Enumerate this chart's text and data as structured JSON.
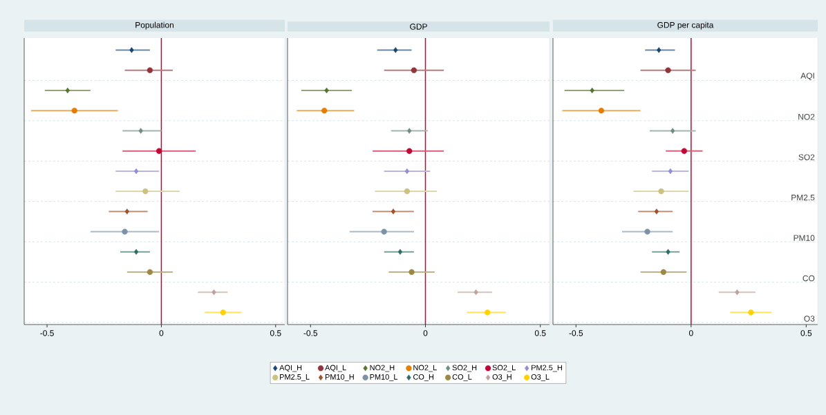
{
  "chart_data": [
    {
      "type": "scatter",
      "orientation": "horizontal",
      "title": "Population",
      "xlim": [
        -0.6,
        0.54
      ],
      "xticks": [
        -0.5,
        0,
        0.5
      ],
      "categories": [
        null,
        null,
        null,
        null,
        null,
        null,
        null,
        null,
        null,
        null,
        null,
        null,
        null,
        null
      ],
      "grid": "y",
      "tick_labels": "x",
      "legend": "bottom",
      "ref_lines": [
        {
          "axis": "x",
          "value": 0,
          "color": "#c10534"
        }
      ],
      "series": [
        {
          "name": "AQI_H",
          "color": "#1a476f",
          "marker": "diamond",
          "values": [
            -0.13,
            null,
            null,
            null,
            null,
            null,
            null,
            null,
            null,
            null,
            null,
            null,
            null,
            null
          ],
          "errors": [
            [
              -0.2,
              -0.05
            ],
            null,
            null,
            null,
            null,
            null,
            null,
            null,
            null,
            null,
            null,
            null,
            null,
            null
          ]
        },
        {
          "name": "AQI_L",
          "color": "#90353b",
          "marker": "circle",
          "values": [
            null,
            -0.05,
            null,
            null,
            null,
            null,
            null,
            null,
            null,
            null,
            null,
            null,
            null,
            null
          ],
          "errors": [
            null,
            [
              -0.16,
              0.05
            ],
            null,
            null,
            null,
            null,
            null,
            null,
            null,
            null,
            null,
            null,
            null,
            null
          ]
        },
        {
          "name": "NO2_H",
          "color": "#55752f",
          "marker": "diamond",
          "values": [
            null,
            null,
            -0.41,
            null,
            null,
            null,
            null,
            null,
            null,
            null,
            null,
            null,
            null,
            null
          ],
          "errors": [
            null,
            null,
            [
              -0.51,
              -0.31
            ],
            null,
            null,
            null,
            null,
            null,
            null,
            null,
            null,
            null,
            null,
            null
          ]
        },
        {
          "name": "NO2_L",
          "color": "#e37e00",
          "marker": "circle",
          "values": [
            null,
            null,
            null,
            -0.38,
            null,
            null,
            null,
            null,
            null,
            null,
            null,
            null,
            null,
            null
          ],
          "errors": [
            null,
            null,
            null,
            [
              -0.57,
              -0.19
            ],
            null,
            null,
            null,
            null,
            null,
            null,
            null,
            null,
            null,
            null
          ]
        },
        {
          "name": "SO2_H",
          "color": "#6e8e84",
          "marker": "diamond",
          "values": [
            null,
            null,
            null,
            null,
            -0.09,
            null,
            null,
            null,
            null,
            null,
            null,
            null,
            null,
            null
          ],
          "errors": [
            null,
            null,
            null,
            null,
            [
              -0.17,
              0
            ],
            null,
            null,
            null,
            null,
            null,
            null,
            null,
            null,
            null
          ]
        },
        {
          "name": "SO2_L",
          "color": "#c10534",
          "marker": "circle",
          "values": [
            null,
            null,
            null,
            null,
            null,
            -0.01,
            null,
            null,
            null,
            null,
            null,
            null,
            null,
            null
          ],
          "errors": [
            null,
            null,
            null,
            null,
            null,
            [
              -0.17,
              0.15
            ],
            null,
            null,
            null,
            null,
            null,
            null,
            null,
            null
          ]
        },
        {
          "name": "PM2.5_H",
          "color": "#938dd2",
          "marker": "diamond",
          "values": [
            null,
            null,
            null,
            null,
            null,
            null,
            -0.11,
            null,
            null,
            null,
            null,
            null,
            null,
            null
          ],
          "errors": [
            null,
            null,
            null,
            null,
            null,
            null,
            [
              -0.2,
              -0.01
            ],
            null,
            null,
            null,
            null,
            null,
            null,
            null
          ]
        },
        {
          "name": "PM2.5_L",
          "color": "#cac27e",
          "marker": "circle",
          "values": [
            null,
            null,
            null,
            null,
            null,
            null,
            null,
            -0.07,
            null,
            null,
            null,
            null,
            null,
            null
          ],
          "errors": [
            null,
            null,
            null,
            null,
            null,
            null,
            null,
            [
              -0.2,
              0.08
            ],
            null,
            null,
            null,
            null,
            null,
            null
          ]
        },
        {
          "name": "PM10_H",
          "color": "#a0522d",
          "marker": "diamond",
          "values": [
            null,
            null,
            null,
            null,
            null,
            null,
            null,
            null,
            -0.15,
            null,
            null,
            null,
            null,
            null
          ],
          "errors": [
            null,
            null,
            null,
            null,
            null,
            null,
            null,
            null,
            [
              -0.23,
              -0.06
            ],
            null,
            null,
            null,
            null,
            null
          ]
        },
        {
          "name": "PM10_L",
          "color": "#7b92a8",
          "marker": "circle",
          "values": [
            null,
            null,
            null,
            null,
            null,
            null,
            null,
            null,
            null,
            -0.16,
            null,
            null,
            null,
            null
          ],
          "errors": [
            null,
            null,
            null,
            null,
            null,
            null,
            null,
            null,
            null,
            [
              -0.31,
              -0.01
            ],
            null,
            null,
            null,
            null
          ]
        },
        {
          "name": "CO_H",
          "color": "#2d6d66",
          "marker": "diamond",
          "values": [
            null,
            null,
            null,
            null,
            null,
            null,
            null,
            null,
            null,
            null,
            -0.11,
            null,
            null,
            null
          ],
          "errors": [
            null,
            null,
            null,
            null,
            null,
            null,
            null,
            null,
            null,
            null,
            [
              -0.18,
              -0.05
            ],
            null,
            null,
            null
          ]
        },
        {
          "name": "CO_L",
          "color": "#9c8847",
          "marker": "circle",
          "values": [
            null,
            null,
            null,
            null,
            null,
            null,
            null,
            null,
            null,
            null,
            null,
            -0.05,
            null,
            null
          ],
          "errors": [
            null,
            null,
            null,
            null,
            null,
            null,
            null,
            null,
            null,
            null,
            null,
            [
              -0.15,
              0.05
            ],
            null,
            null
          ]
        },
        {
          "name": "O3_H",
          "color": "#bfa19c",
          "marker": "diamond",
          "values": [
            null,
            null,
            null,
            null,
            null,
            null,
            null,
            null,
            null,
            null,
            null,
            null,
            0.23,
            null
          ],
          "errors": [
            null,
            null,
            null,
            null,
            null,
            null,
            null,
            null,
            null,
            null,
            null,
            null,
            [
              0.16,
              0.29
            ],
            null
          ]
        },
        {
          "name": "O3_L",
          "color": "#ffd200",
          "marker": "circle",
          "values": [
            null,
            null,
            null,
            null,
            null,
            null,
            null,
            null,
            null,
            null,
            null,
            null,
            null,
            0.27
          ],
          "errors": [
            null,
            null,
            null,
            null,
            null,
            null,
            null,
            null,
            null,
            null,
            null,
            null,
            null,
            [
              0.19,
              0.35
            ]
          ]
        }
      ]
    },
    {
      "type": "scatter",
      "orientation": "horizontal",
      "title": "GDP",
      "xlim": [
        -0.6,
        0.54
      ],
      "xticks": [
        -0.5,
        0,
        0.5
      ],
      "categories": [
        null,
        null,
        null,
        null,
        null,
        null,
        null,
        null,
        null,
        null,
        null,
        null,
        null,
        null
      ],
      "grid": "y",
      "tick_labels": "x",
      "ref_lines": [
        {
          "axis": "x",
          "value": 0,
          "color": "#c10534"
        }
      ],
      "series": [
        {
          "color": "#1a476f",
          "marker": "diamond",
          "values": [
            -0.13,
            null,
            null,
            null,
            null,
            null,
            null,
            null,
            null,
            null,
            null,
            null,
            null,
            null
          ],
          "errors": [
            [
              -0.21,
              -0.06
            ],
            null,
            null,
            null,
            null,
            null,
            null,
            null,
            null,
            null,
            null,
            null,
            null,
            null
          ]
        },
        {
          "color": "#90353b",
          "marker": "circle",
          "values": [
            null,
            -0.05,
            null,
            null,
            null,
            null,
            null,
            null,
            null,
            null,
            null,
            null,
            null,
            null
          ],
          "errors": [
            null,
            [
              -0.18,
              0.08
            ],
            null,
            null,
            null,
            null,
            null,
            null,
            null,
            null,
            null,
            null,
            null,
            null
          ]
        },
        {
          "color": "#55752f",
          "marker": "diamond",
          "values": [
            null,
            null,
            -0.43,
            null,
            null,
            null,
            null,
            null,
            null,
            null,
            null,
            null,
            null,
            null
          ],
          "errors": [
            null,
            null,
            [
              -0.54,
              -0.32
            ],
            null,
            null,
            null,
            null,
            null,
            null,
            null,
            null,
            null,
            null,
            null
          ]
        },
        {
          "color": "#e37e00",
          "marker": "circle",
          "values": [
            null,
            null,
            null,
            -0.44,
            null,
            null,
            null,
            null,
            null,
            null,
            null,
            null,
            null,
            null
          ],
          "errors": [
            null,
            null,
            null,
            [
              -0.56,
              -0.31
            ],
            null,
            null,
            null,
            null,
            null,
            null,
            null,
            null,
            null,
            null
          ]
        },
        {
          "color": "#6e8e84",
          "marker": "diamond",
          "values": [
            null,
            null,
            null,
            null,
            -0.07,
            null,
            null,
            null,
            null,
            null,
            null,
            null,
            null,
            null
          ],
          "errors": [
            null,
            null,
            null,
            null,
            [
              -0.15,
              0.01
            ],
            null,
            null,
            null,
            null,
            null,
            null,
            null,
            null,
            null
          ]
        },
        {
          "color": "#c10534",
          "marker": "circle",
          "values": [
            null,
            null,
            null,
            null,
            null,
            -0.07,
            null,
            null,
            null,
            null,
            null,
            null,
            null,
            null
          ],
          "errors": [
            null,
            null,
            null,
            null,
            null,
            [
              -0.23,
              0.08
            ],
            null,
            null,
            null,
            null,
            null,
            null,
            null,
            null
          ]
        },
        {
          "color": "#938dd2",
          "marker": "diamond",
          "values": [
            null,
            null,
            null,
            null,
            null,
            null,
            -0.08,
            null,
            null,
            null,
            null,
            null,
            null,
            null
          ],
          "errors": [
            null,
            null,
            null,
            null,
            null,
            null,
            [
              -0.18,
              0.02
            ],
            null,
            null,
            null,
            null,
            null,
            null,
            null
          ]
        },
        {
          "color": "#cac27e",
          "marker": "circle",
          "values": [
            null,
            null,
            null,
            null,
            null,
            null,
            null,
            -0.08,
            null,
            null,
            null,
            null,
            null,
            null
          ],
          "errors": [
            null,
            null,
            null,
            null,
            null,
            null,
            null,
            [
              -0.22,
              0.05
            ],
            null,
            null,
            null,
            null,
            null,
            null
          ]
        },
        {
          "color": "#a0522d",
          "marker": "diamond",
          "values": [
            null,
            null,
            null,
            null,
            null,
            null,
            null,
            null,
            -0.14,
            null,
            null,
            null,
            null,
            null
          ],
          "errors": [
            null,
            null,
            null,
            null,
            null,
            null,
            null,
            null,
            [
              -0.23,
              -0.05
            ],
            null,
            null,
            null,
            null,
            null
          ]
        },
        {
          "color": "#7b92a8",
          "marker": "circle",
          "values": [
            null,
            null,
            null,
            null,
            null,
            null,
            null,
            null,
            null,
            -0.18,
            null,
            null,
            null,
            null
          ],
          "errors": [
            null,
            null,
            null,
            null,
            null,
            null,
            null,
            null,
            null,
            [
              -0.33,
              -0.05
            ],
            null,
            null,
            null,
            null
          ]
        },
        {
          "color": "#2d6d66",
          "marker": "diamond",
          "values": [
            null,
            null,
            null,
            null,
            null,
            null,
            null,
            null,
            null,
            null,
            -0.11,
            null,
            null,
            null
          ],
          "errors": [
            null,
            null,
            null,
            null,
            null,
            null,
            null,
            null,
            null,
            null,
            [
              -0.18,
              -0.05
            ],
            null,
            null,
            null
          ]
        },
        {
          "color": "#9c8847",
          "marker": "circle",
          "values": [
            null,
            null,
            null,
            null,
            null,
            null,
            null,
            null,
            null,
            null,
            null,
            -0.06,
            null,
            null
          ],
          "errors": [
            null,
            null,
            null,
            null,
            null,
            null,
            null,
            null,
            null,
            null,
            null,
            [
              -0.16,
              0.04
            ],
            null,
            null
          ]
        },
        {
          "color": "#bfa19c",
          "marker": "diamond",
          "values": [
            null,
            null,
            null,
            null,
            null,
            null,
            null,
            null,
            null,
            null,
            null,
            null,
            0.22,
            null
          ],
          "errors": [
            null,
            null,
            null,
            null,
            null,
            null,
            null,
            null,
            null,
            null,
            null,
            null,
            [
              0.14,
              0.29
            ],
            null
          ]
        },
        {
          "color": "#ffd200",
          "marker": "circle",
          "values": [
            null,
            null,
            null,
            null,
            null,
            null,
            null,
            null,
            null,
            null,
            null,
            null,
            null,
            0.27
          ],
          "errors": [
            null,
            null,
            null,
            null,
            null,
            null,
            null,
            null,
            null,
            null,
            null,
            null,
            null,
            [
              0.18,
              0.35
            ]
          ]
        }
      ]
    },
    {
      "type": "scatter",
      "orientation": "horizontal",
      "title": "GDP per capita",
      "xlim": [
        -0.6,
        0.55
      ],
      "xticks": [
        -0.5,
        0,
        0.5
      ],
      "categories": [
        null,
        "AQI",
        null,
        "NO2",
        null,
        "SO2",
        null,
        "PM2.5",
        null,
        "PM10",
        null,
        "CO",
        null,
        "O3"
      ],
      "grid": "y",
      "ref_lines": [
        {
          "axis": "x",
          "value": 0,
          "color": "#c10534"
        }
      ],
      "series": [
        {
          "color": "#1a476f",
          "marker": "diamond",
          "values": [
            -0.14,
            null,
            null,
            null,
            null,
            null,
            null,
            null,
            null,
            null,
            null,
            null,
            null,
            null
          ],
          "errors": [
            [
              -0.2,
              -0.07
            ],
            null,
            null,
            null,
            null,
            null,
            null,
            null,
            null,
            null,
            null,
            null,
            null,
            null
          ]
        },
        {
          "color": "#90353b",
          "marker": "circle",
          "values": [
            null,
            -0.1,
            null,
            null,
            null,
            null,
            null,
            null,
            null,
            null,
            null,
            null,
            null,
            null
          ],
          "errors": [
            null,
            [
              -0.22,
              0.02
            ],
            null,
            null,
            null,
            null,
            null,
            null,
            null,
            null,
            null,
            null,
            null,
            null
          ]
        },
        {
          "color": "#55752f",
          "marker": "diamond",
          "values": [
            null,
            null,
            -0.43,
            null,
            null,
            null,
            null,
            null,
            null,
            null,
            null,
            null,
            null,
            null
          ],
          "errors": [
            null,
            null,
            [
              -0.55,
              -0.29
            ],
            null,
            null,
            null,
            null,
            null,
            null,
            null,
            null,
            null,
            null,
            null
          ]
        },
        {
          "color": "#e37e00",
          "marker": "circle",
          "values": [
            null,
            null,
            null,
            -0.39,
            null,
            null,
            null,
            null,
            null,
            null,
            null,
            null,
            null,
            null
          ],
          "errors": [
            null,
            null,
            null,
            [
              -0.56,
              -0.22
            ],
            null,
            null,
            null,
            null,
            null,
            null,
            null,
            null,
            null,
            null
          ]
        },
        {
          "color": "#6e8e84",
          "marker": "diamond",
          "values": [
            null,
            null,
            null,
            null,
            -0.08,
            null,
            null,
            null,
            null,
            null,
            null,
            null,
            null,
            null
          ],
          "errors": [
            null,
            null,
            null,
            null,
            [
              -0.18,
              0.02
            ],
            null,
            null,
            null,
            null,
            null,
            null,
            null,
            null,
            null
          ]
        },
        {
          "color": "#c10534",
          "marker": "circle",
          "values": [
            null,
            null,
            null,
            null,
            null,
            -0.03,
            null,
            null,
            null,
            null,
            null,
            null,
            null,
            null
          ],
          "errors": [
            null,
            null,
            null,
            null,
            null,
            [
              -0.11,
              0.05
            ],
            null,
            null,
            null,
            null,
            null,
            null,
            null,
            null
          ]
        },
        {
          "color": "#938dd2",
          "marker": "diamond",
          "values": [
            null,
            null,
            null,
            null,
            null,
            null,
            -0.09,
            null,
            null,
            null,
            null,
            null,
            null,
            null
          ],
          "errors": [
            null,
            null,
            null,
            null,
            null,
            null,
            [
              -0.17,
              -0.01
            ],
            null,
            null,
            null,
            null,
            null,
            null,
            null
          ]
        },
        {
          "color": "#cac27e",
          "marker": "circle",
          "values": [
            null,
            null,
            null,
            null,
            null,
            null,
            null,
            -0.13,
            null,
            null,
            null,
            null,
            null,
            null
          ],
          "errors": [
            null,
            null,
            null,
            null,
            null,
            null,
            null,
            [
              -0.25,
              -0.01
            ],
            null,
            null,
            null,
            null,
            null,
            null
          ]
        },
        {
          "color": "#a0522d",
          "marker": "diamond",
          "values": [
            null,
            null,
            null,
            null,
            null,
            null,
            null,
            null,
            -0.15,
            null,
            null,
            null,
            null,
            null
          ],
          "errors": [
            null,
            null,
            null,
            null,
            null,
            null,
            null,
            null,
            [
              -0.23,
              -0.08
            ],
            null,
            null,
            null,
            null,
            null
          ]
        },
        {
          "color": "#7b92a8",
          "marker": "circle",
          "values": [
            null,
            null,
            null,
            null,
            null,
            null,
            null,
            null,
            null,
            -0.19,
            null,
            null,
            null,
            null
          ],
          "errors": [
            null,
            null,
            null,
            null,
            null,
            null,
            null,
            null,
            null,
            [
              -0.3,
              -0.08
            ],
            null,
            null,
            null,
            null
          ]
        },
        {
          "color": "#2d6d66",
          "marker": "diamond",
          "values": [
            null,
            null,
            null,
            null,
            null,
            null,
            null,
            null,
            null,
            null,
            -0.1,
            null,
            null,
            null
          ],
          "errors": [
            null,
            null,
            null,
            null,
            null,
            null,
            null,
            null,
            null,
            null,
            [
              -0.17,
              -0.05
            ],
            null,
            null,
            null
          ]
        },
        {
          "color": "#9c8847",
          "marker": "circle",
          "values": [
            null,
            null,
            null,
            null,
            null,
            null,
            null,
            null,
            null,
            null,
            null,
            -0.12,
            null,
            null
          ],
          "errors": [
            null,
            null,
            null,
            null,
            null,
            null,
            null,
            null,
            null,
            null,
            null,
            [
              -0.22,
              -0.02
            ],
            null,
            null
          ]
        },
        {
          "color": "#bfa19c",
          "marker": "diamond",
          "values": [
            null,
            null,
            null,
            null,
            null,
            null,
            null,
            null,
            null,
            null,
            null,
            null,
            0.2,
            null
          ],
          "errors": [
            null,
            null,
            null,
            null,
            null,
            null,
            null,
            null,
            null,
            null,
            null,
            null,
            [
              0.12,
              0.28
            ],
            null
          ]
        },
        {
          "color": "#ffd200",
          "marker": "circle",
          "values": [
            null,
            null,
            null,
            null,
            null,
            null,
            null,
            null,
            null,
            null,
            null,
            null,
            null,
            0.26
          ],
          "errors": [
            null,
            null,
            null,
            null,
            null,
            null,
            null,
            null,
            null,
            null,
            null,
            null,
            null,
            [
              0.17,
              0.35
            ]
          ]
        }
      ]
    }
  ]
}
